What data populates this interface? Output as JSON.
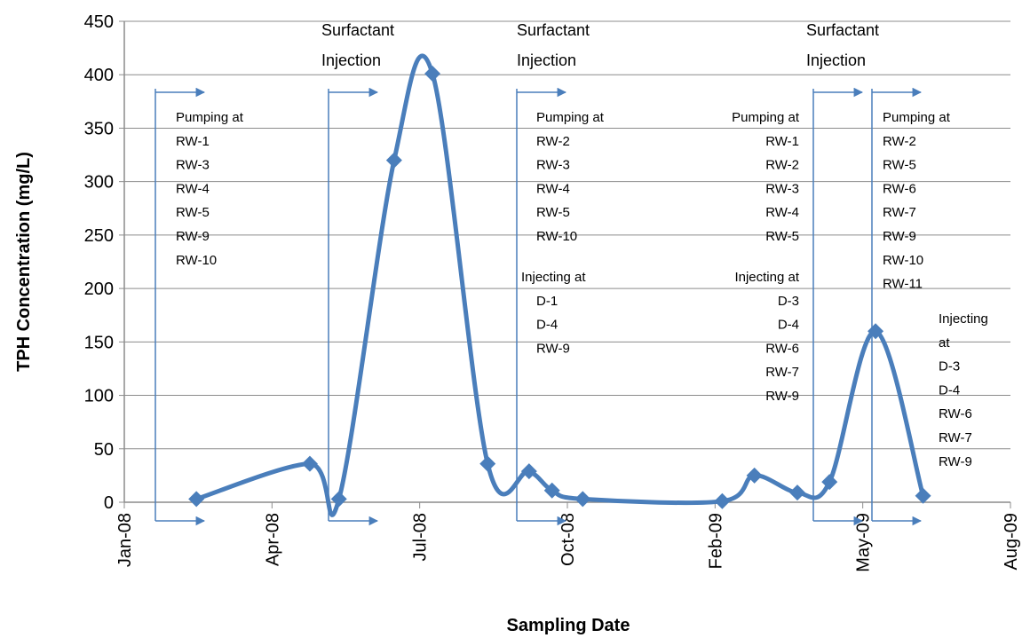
{
  "chart_data": {
    "type": "line",
    "title": "",
    "xlabel": "Sampling Date",
    "ylabel": "TPH Concentration (mg/L)",
    "ylim": [
      0,
      450
    ],
    "y_ticks": [
      "0",
      "50",
      "100",
      "150",
      "200",
      "250",
      "300",
      "350",
      "400",
      "450"
    ],
    "x_ticks": [
      "Jan-08",
      "Apr-08",
      "Jul-08",
      "Oct-08",
      "Feb-09",
      "May-09",
      "Aug-09"
    ],
    "grid": "horizontal",
    "smooth": true,
    "color": "#4a7ebb",
    "series": [
      {
        "x": [
          "2008-02-17",
          "2008-05-01",
          "2008-05-20",
          "2008-06-25",
          "2008-07-20",
          "2008-08-25",
          "2008-09-21",
          "2008-10-06",
          "2008-10-26",
          "2009-01-25",
          "2009-02-15",
          "2009-03-15",
          "2009-04-05",
          "2009-05-05",
          "2009-06-05"
        ],
        "values": [
          3,
          36,
          3,
          320,
          401,
          36,
          29,
          11,
          3,
          1,
          25,
          9,
          19,
          160,
          6
        ]
      }
    ]
  },
  "annotations": {
    "injection_labels": [
      {
        "l1": "Surfactant",
        "l2": "Injection"
      },
      {
        "l1": "Surfactant",
        "l2": "Injection"
      },
      {
        "l1": "Surfactant",
        "l2": "Injection"
      }
    ],
    "phase_texts": [
      [
        "Pumping at",
        "RW-1",
        "RW-3",
        "RW-4",
        "RW-5",
        "RW-9",
        "RW-10"
      ],
      [
        "Pumping at",
        "RW-2",
        "RW-3",
        "RW-4",
        "RW-5",
        "RW-10"
      ],
      [
        "Injecting at",
        "D-1",
        "D-4",
        "RW-9"
      ],
      [
        "Pumping at",
        "RW-1",
        "RW-2",
        "RW-3",
        "RW-4",
        "RW-5"
      ],
      [
        "Injecting at",
        "D-3",
        "D-4",
        "RW-6",
        "RW-7",
        "RW-9"
      ],
      [
        "Pumping at",
        "RW-2",
        "RW-5",
        "RW-6",
        "RW-7",
        "RW-9",
        "RW-10",
        "RW-11"
      ],
      [
        "Injecting",
        "at",
        "D-3",
        "D-4",
        "RW-6",
        "RW-7",
        "RW-9"
      ]
    ]
  }
}
